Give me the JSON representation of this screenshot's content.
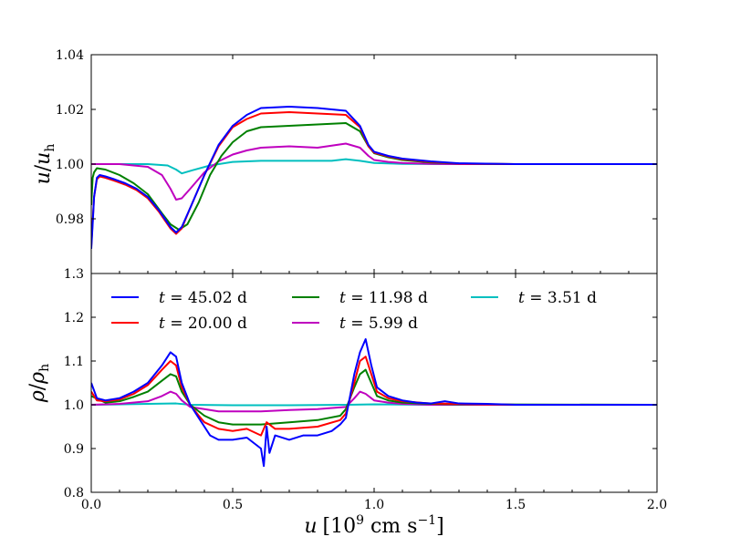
{
  "chart_data": [
    {
      "type": "line",
      "panel": "top",
      "ylabel_main": "u",
      "ylabel_sub": "h",
      "xlim": [
        0.0,
        2.0
      ],
      "ylim": [
        0.96,
        1.04
      ],
      "yticks": [
        "0.98",
        "1.00",
        "1.02",
        "1.04"
      ],
      "ytick_values": [
        0.98,
        1.0,
        1.02,
        1.04
      ],
      "series": [
        {
          "name": "t = 45.02 d",
          "color": "#0000ff",
          "x": [
            0.0,
            0.005,
            0.01,
            0.02,
            0.03,
            0.05,
            0.08,
            0.12,
            0.16,
            0.2,
            0.24,
            0.28,
            0.3,
            0.32,
            0.35,
            0.4,
            0.45,
            0.5,
            0.55,
            0.6,
            0.7,
            0.8,
            0.9,
            0.95,
            0.98,
            1.0,
            1.05,
            1.1,
            1.2,
            1.3,
            1.5,
            2.0
          ],
          "y": [
            0.969,
            0.978,
            0.988,
            0.995,
            0.996,
            0.9955,
            0.9945,
            0.993,
            0.991,
            0.988,
            0.983,
            0.977,
            0.975,
            0.977,
            0.984,
            0.996,
            1.007,
            1.014,
            1.018,
            1.0205,
            1.021,
            1.0205,
            1.0195,
            1.014,
            1.007,
            1.0045,
            1.003,
            1.002,
            1.001,
            1.0003,
            1.0,
            1.0
          ]
        },
        {
          "name": "t = 20.00 d",
          "color": "#ff0000",
          "x": [
            0.0,
            0.005,
            0.01,
            0.02,
            0.03,
            0.05,
            0.08,
            0.12,
            0.16,
            0.2,
            0.24,
            0.28,
            0.3,
            0.32,
            0.35,
            0.4,
            0.45,
            0.5,
            0.55,
            0.6,
            0.7,
            0.8,
            0.9,
            0.95,
            0.98,
            1.0,
            1.05,
            1.1,
            1.2,
            1.3,
            1.5,
            2.0
          ],
          "y": [
            0.97,
            0.979,
            0.988,
            0.9945,
            0.9955,
            0.995,
            0.994,
            0.9925,
            0.9905,
            0.9875,
            0.9825,
            0.9765,
            0.9745,
            0.9765,
            0.984,
            0.996,
            1.0065,
            1.0135,
            1.0165,
            1.0185,
            1.019,
            1.0185,
            1.018,
            1.0135,
            1.0065,
            1.0042,
            1.0028,
            1.0018,
            1.0008,
            1.0002,
            1.0,
            1.0
          ]
        },
        {
          "name": "t = 11.98 d",
          "color": "#008000",
          "x": [
            0.0,
            0.005,
            0.01,
            0.02,
            0.05,
            0.1,
            0.15,
            0.2,
            0.25,
            0.28,
            0.31,
            0.34,
            0.38,
            0.42,
            0.46,
            0.5,
            0.55,
            0.6,
            0.7,
            0.8,
            0.9,
            0.95,
            0.98,
            1.0,
            1.05,
            1.1,
            1.2,
            1.3,
            1.5,
            2.0
          ],
          "y": [
            0.985,
            0.995,
            0.997,
            0.9985,
            0.998,
            0.996,
            0.993,
            0.989,
            0.982,
            0.978,
            0.976,
            0.978,
            0.986,
            0.996,
            1.003,
            1.008,
            1.012,
            1.0135,
            1.014,
            1.0145,
            1.015,
            1.012,
            1.0065,
            1.004,
            1.0025,
            1.0015,
            1.0006,
            1.0002,
            1.0,
            1.0
          ]
        },
        {
          "name": "t = 5.99 d",
          "color": "#bf00bf",
          "x": [
            0.0,
            0.1,
            0.2,
            0.25,
            0.28,
            0.3,
            0.32,
            0.35,
            0.4,
            0.45,
            0.5,
            0.55,
            0.6,
            0.7,
            0.8,
            0.9,
            0.95,
            0.98,
            1.0,
            1.05,
            1.1,
            1.2,
            1.3,
            2.0
          ],
          "y": [
            1.0,
            1.0,
            0.999,
            0.996,
            0.991,
            0.987,
            0.9875,
            0.991,
            0.997,
            1.001,
            1.0035,
            1.005,
            1.006,
            1.0065,
            1.006,
            1.0075,
            1.006,
            1.003,
            1.0015,
            1.0008,
            1.0004,
            1.0001,
            1.0,
            1.0
          ]
        },
        {
          "name": "t = 3.51 d",
          "color": "#00bfbf",
          "x": [
            0.0,
            0.2,
            0.27,
            0.3,
            0.32,
            0.36,
            0.42,
            0.5,
            0.6,
            0.7,
            0.85,
            0.9,
            0.95,
            1.0,
            1.1,
            1.3,
            2.0
          ],
          "y": [
            1.0,
            1.0,
            0.9995,
            0.998,
            0.9966,
            0.9978,
            0.9995,
            1.0008,
            1.0012,
            1.0012,
            1.0012,
            1.0018,
            1.0012,
            1.0004,
            1.0001,
            1.0,
            1.0
          ]
        }
      ]
    },
    {
      "type": "line",
      "panel": "bottom",
      "ylabel_main": "ρ",
      "ylabel_sub": "h",
      "xlabel_main": "u",
      "xlabel_unit_open": "[10",
      "xlabel_unit_exp": "9",
      "xlabel_unit_close": " cm s",
      "xlabel_unit_exp2": "−1",
      "xlabel_unit_end": "]",
      "xlim": [
        0.0,
        2.0
      ],
      "ylim": [
        0.8,
        1.3
      ],
      "xticks": [
        "0.0",
        "0.5",
        "1.0",
        "1.5",
        "2.0"
      ],
      "xtick_values": [
        0.0,
        0.5,
        1.0,
        1.5,
        2.0
      ],
      "yticks": [
        "0.8",
        "0.9",
        "1.0",
        "1.1",
        "1.2",
        "1.3"
      ],
      "ytick_values": [
        0.8,
        0.9,
        1.0,
        1.1,
        1.2,
        1.3
      ],
      "legend": {
        "placement": "top",
        "entries": [
          {
            "label": "t = 45.02 d",
            "color": "#0000ff"
          },
          {
            "label": "t = 11.98 d",
            "color": "#008000"
          },
          {
            "label": "t = 3.51 d",
            "color": "#00bfbf"
          },
          {
            "label": "t = 20.00 d",
            "color": "#ff0000"
          },
          {
            "label": "t = 5.99 d",
            "color": "#bf00bf"
          }
        ]
      },
      "series": [
        {
          "name": "t = 45.02 d",
          "color": "#0000ff",
          "x": [
            0.0,
            0.02,
            0.05,
            0.1,
            0.15,
            0.2,
            0.25,
            0.28,
            0.3,
            0.32,
            0.35,
            0.38,
            0.4,
            0.42,
            0.45,
            0.5,
            0.55,
            0.6,
            0.61,
            0.62,
            0.63,
            0.65,
            0.7,
            0.75,
            0.8,
            0.85,
            0.88,
            0.9,
            0.93,
            0.95,
            0.97,
            0.99,
            1.01,
            1.05,
            1.1,
            1.15,
            1.2,
            1.25,
            1.3,
            1.4,
            1.5,
            1.6,
            2.0
          ],
          "y": [
            1.05,
            1.015,
            1.01,
            1.015,
            1.03,
            1.05,
            1.09,
            1.12,
            1.11,
            1.05,
            1.0,
            0.97,
            0.95,
            0.93,
            0.92,
            0.92,
            0.925,
            0.9,
            0.86,
            0.95,
            0.89,
            0.93,
            0.92,
            0.93,
            0.93,
            0.94,
            0.955,
            0.97,
            1.07,
            1.12,
            1.15,
            1.09,
            1.04,
            1.02,
            1.01,
            1.005,
            1.003,
            1.008,
            1.003,
            1.002,
            1.0,
            1.0,
            1.0
          ]
        },
        {
          "name": "t = 20.00 d",
          "color": "#ff0000",
          "x": [
            0.0,
            0.02,
            0.05,
            0.1,
            0.15,
            0.2,
            0.25,
            0.28,
            0.3,
            0.32,
            0.35,
            0.38,
            0.4,
            0.45,
            0.5,
            0.55,
            0.6,
            0.62,
            0.65,
            0.7,
            0.8,
            0.88,
            0.9,
            0.93,
            0.95,
            0.97,
            0.99,
            1.01,
            1.05,
            1.1,
            1.2,
            1.3,
            1.5,
            2.0
          ],
          "y": [
            1.03,
            1.01,
            1.008,
            1.012,
            1.025,
            1.045,
            1.08,
            1.1,
            1.09,
            1.04,
            1.0,
            0.975,
            0.96,
            0.945,
            0.94,
            0.945,
            0.93,
            0.96,
            0.945,
            0.945,
            0.95,
            0.965,
            0.98,
            1.05,
            1.1,
            1.11,
            1.07,
            1.03,
            1.015,
            1.008,
            1.003,
            1.002,
            1.0,
            1.0
          ]
        },
        {
          "name": "t = 11.98 d",
          "color": "#008000",
          "x": [
            0.0,
            0.05,
            0.1,
            0.15,
            0.2,
            0.25,
            0.28,
            0.3,
            0.32,
            0.35,
            0.4,
            0.45,
            0.5,
            0.6,
            0.7,
            0.8,
            0.88,
            0.9,
            0.93,
            0.95,
            0.97,
            0.99,
            1.01,
            1.05,
            1.1,
            1.2,
            1.3,
            2.0
          ],
          "y": [
            1.02,
            1.005,
            1.008,
            1.018,
            1.03,
            1.055,
            1.07,
            1.065,
            1.03,
            1.0,
            0.975,
            0.96,
            0.955,
            0.955,
            0.96,
            0.965,
            0.975,
            0.99,
            1.04,
            1.07,
            1.08,
            1.05,
            1.02,
            1.01,
            1.005,
            1.002,
            1.001,
            1.0
          ]
        },
        {
          "name": "t = 5.99 d",
          "color": "#bf00bf",
          "x": [
            0.0,
            0.1,
            0.2,
            0.25,
            0.28,
            0.3,
            0.32,
            0.35,
            0.4,
            0.45,
            0.5,
            0.6,
            0.7,
            0.8,
            0.9,
            0.93,
            0.95,
            0.97,
            1.0,
            1.05,
            1.1,
            1.2,
            2.0
          ],
          "y": [
            1.0,
            1.002,
            1.008,
            1.02,
            1.03,
            1.025,
            1.01,
            0.995,
            0.99,
            0.985,
            0.985,
            0.985,
            0.988,
            0.99,
            0.995,
            1.015,
            1.03,
            1.025,
            1.01,
            1.005,
            1.002,
            1.0,
            1.0
          ]
        },
        {
          "name": "t = 3.51 d",
          "color": "#00bfbf",
          "x": [
            0.0,
            0.2,
            0.3,
            0.35,
            0.5,
            0.7,
            0.9,
            1.0,
            1.2,
            2.0
          ],
          "y": [
            1.0,
            1.002,
            1.003,
            1.0,
            0.999,
            0.999,
            1.0,
            1.001,
            1.0,
            1.0
          ]
        }
      ]
    }
  ]
}
